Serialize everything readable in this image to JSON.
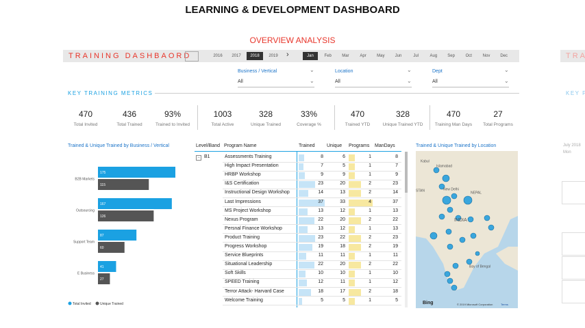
{
  "title": "LEARNING & DEVELOPMENT DASHBOARD",
  "subtitle": "OVERVIEW ANALYSIS",
  "header": {
    "title": "TRAINING DASHBAORD",
    "years": [
      "2016",
      "2017",
      "2018",
      "2019"
    ],
    "selected_year": "2018",
    "months": [
      "Jan",
      "Feb",
      "Mar",
      "Apr",
      "May",
      "Jun",
      "Jul",
      "Aug",
      "Sep",
      "Oct",
      "Nov",
      "Dec"
    ],
    "selected_month": "Jan"
  },
  "filters": [
    {
      "label": "Business / Vertical",
      "value": "All"
    },
    {
      "label": "Location",
      "value": "All"
    },
    {
      "label": "Dept",
      "value": "All"
    }
  ],
  "metrics_title": "KEY TRAINING METRICS",
  "metrics": [
    {
      "value": "470",
      "label": "Total Invited"
    },
    {
      "value": "436",
      "label": "Total Trained"
    },
    {
      "value": "93%",
      "label": "Trained to Invited"
    },
    {
      "value": "1003",
      "label": "Total Active"
    },
    {
      "value": "328",
      "label": "Unique Trained"
    },
    {
      "value": "33%",
      "label": "Coverage %"
    },
    {
      "value": "470",
      "label": "Trained YTD"
    },
    {
      "value": "328",
      "label": "Unique Trained YTD"
    },
    {
      "value": "470",
      "label": "Training Man Days"
    },
    {
      "value": "27",
      "label": "Total Programs"
    }
  ],
  "chart_data": {
    "type": "bar",
    "orientation": "horizontal",
    "title": "Trained & Unique Trained by Business / Vertical",
    "categories": [
      "B2B Markets",
      "Outsourcing",
      "Support Team",
      "E Business"
    ],
    "series": [
      {
        "name": "Total Invited",
        "color": "#1ba1e2",
        "values": [
          175,
          167,
          87,
          41
        ]
      },
      {
        "name": "Unique Trained",
        "color": "#555555",
        "values": [
          115,
          126,
          60,
          27
        ]
      }
    ]
  },
  "table": {
    "columns": [
      "Level/Band",
      "Program Name",
      "Trained",
      "Unique",
      "Programs",
      "ManDays"
    ],
    "group": "B1",
    "rows": [
      [
        "Assessments Training",
        8,
        6,
        1,
        8
      ],
      [
        "High Impact Presentation",
        7,
        5,
        1,
        7
      ],
      [
        "HRBP Workshop",
        9,
        9,
        1,
        9
      ],
      [
        "I&S Certification",
        23,
        20,
        2,
        23
      ],
      [
        "Instructional Design Workshop",
        14,
        13,
        2,
        14
      ],
      [
        "Last Impressions",
        37,
        33,
        4,
        37
      ],
      [
        "MS Project Workshop",
        13,
        12,
        1,
        13
      ],
      [
        "Nexus Program",
        22,
        20,
        2,
        22
      ],
      [
        "Persnal Finance Workshop",
        13,
        12,
        1,
        13
      ],
      [
        "Product Training",
        23,
        22,
        2,
        23
      ],
      [
        "Progress Workshop",
        19,
        18,
        2,
        19
      ],
      [
        "Service Blueprints",
        11,
        11,
        1,
        11
      ],
      [
        "Situational Leadership",
        22,
        20,
        2,
        22
      ],
      [
        "Soft Skills",
        10,
        10,
        1,
        10
      ],
      [
        "SPEED Training",
        12,
        11,
        1,
        12
      ],
      [
        "Terror Attack- Harvard Case",
        18,
        17,
        2,
        18
      ],
      [
        "Welcome Training",
        5,
        5,
        1,
        5
      ]
    ]
  },
  "map": {
    "title": "Trained & Unique Trained by Location",
    "labels": [
      "Kabul",
      "Islamabad",
      "New Delhi",
      "NEPAL",
      "INDIA",
      "Bay of Bengal",
      "STAN"
    ],
    "brand": "Bing",
    "credit": "© 2019 Microsoft Corporation",
    "terms": "Terms"
  },
  "right_panel": {
    "title": "TRA",
    "metrics": "KEY P",
    "date": "July 2018",
    "sub": "Mon"
  }
}
